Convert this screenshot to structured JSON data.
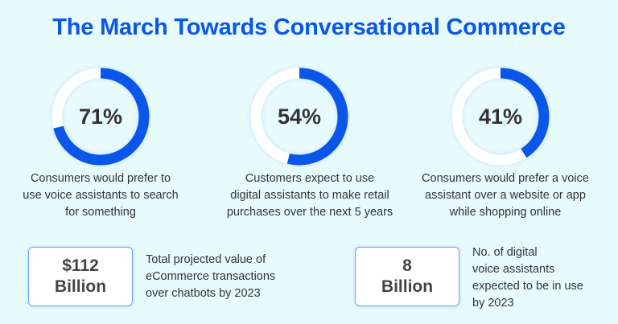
{
  "title": "The March Towards Conversational Commerce",
  "colors": {
    "accent": "#0a56e8",
    "track": "#ffffff",
    "background": "#e8fbfc"
  },
  "stats": [
    {
      "percent": 71,
      "label": "71%",
      "caption": [
        "Consumers would prefer to",
        "use voice assistants to search",
        "for something"
      ]
    },
    {
      "percent": 54,
      "label": "54%",
      "caption": [
        "Customers expect to use",
        "digital assistants to make retail",
        "purchases over the next 5 years"
      ]
    },
    {
      "percent": 41,
      "label": "41%",
      "caption": [
        "Consumers would prefer a voice",
        "assistant over a website or app",
        "while shopping online"
      ]
    }
  ],
  "facts": [
    {
      "value": [
        "$112",
        "Billion"
      ],
      "description": [
        "Total projected value of",
        "eCommerce transactions",
        "over chatbots by 2023"
      ]
    },
    {
      "value": [
        "8",
        "Billion"
      ],
      "description": [
        "No. of digital",
        "voice assistants",
        "expected to be in use",
        "by 2023"
      ]
    }
  ]
}
